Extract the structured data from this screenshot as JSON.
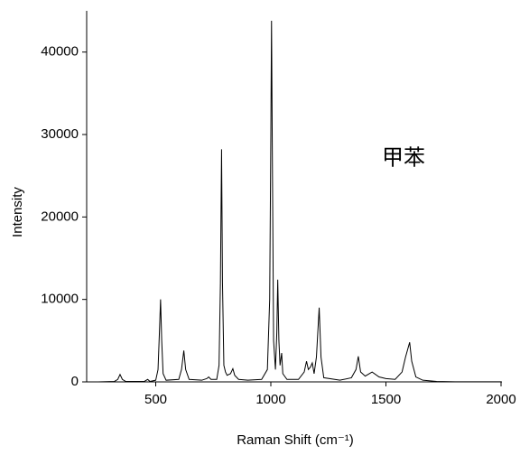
{
  "chart_data": {
    "type": "line",
    "xlabel": "Raman Shift (cm⁻¹)",
    "ylabel": "Intensity",
    "annotation": "甲苯",
    "xlim": [
      200,
      2000
    ],
    "xticks": [
      500,
      1000,
      1500,
      2000
    ],
    "ylim": [
      0,
      45000
    ],
    "yticks": [
      0,
      10000,
      20000,
      30000,
      40000
    ],
    "series": [
      {
        "color": "#000000",
        "x": [
          250,
          320,
          335,
          345,
          355,
          370,
          450,
          465,
          475,
          500,
          510,
          516,
          521,
          526,
          532,
          545,
          600,
          612,
          622,
          630,
          645,
          700,
          722,
          730,
          740,
          765,
          775,
          781,
          786,
          790,
          796,
          803,
          810,
          825,
          835,
          843,
          860,
          900,
          960,
          985,
          995,
          1000,
          1003,
          1006,
          1012,
          1020,
          1026,
          1030,
          1035,
          1040,
          1047,
          1052,
          1070,
          1120,
          1145,
          1155,
          1163,
          1172,
          1180,
          1188,
          1198,
          1210,
          1218,
          1230,
          1300,
          1350,
          1370,
          1380,
          1390,
          1410,
          1440,
          1470,
          1500,
          1540,
          1570,
          1585,
          1595,
          1603,
          1612,
          1630,
          1660,
          1720,
          1800,
          2000
        ],
        "values": [
          0,
          50,
          300,
          900,
          300,
          50,
          50,
          300,
          50,
          200,
          1500,
          6000,
          10000,
          5000,
          1000,
          200,
          300,
          1500,
          3800,
          1500,
          300,
          200,
          400,
          600,
          300,
          300,
          2000,
          12000,
          28200,
          12000,
          2000,
          1200,
          800,
          1000,
          1600,
          800,
          300,
          200,
          300,
          1500,
          10000,
          30000,
          43800,
          30000,
          5000,
          1500,
          6000,
          12400,
          5000,
          2000,
          3500,
          1000,
          300,
          300,
          1200,
          2500,
          1500,
          1800,
          2300,
          1000,
          3000,
          9000,
          3000,
          500,
          200,
          500,
          1500,
          3100,
          1200,
          700,
          1200,
          600,
          400,
          300,
          1200,
          3000,
          4000,
          4800,
          2500,
          600,
          200,
          50,
          20,
          10
        ]
      }
    ]
  }
}
